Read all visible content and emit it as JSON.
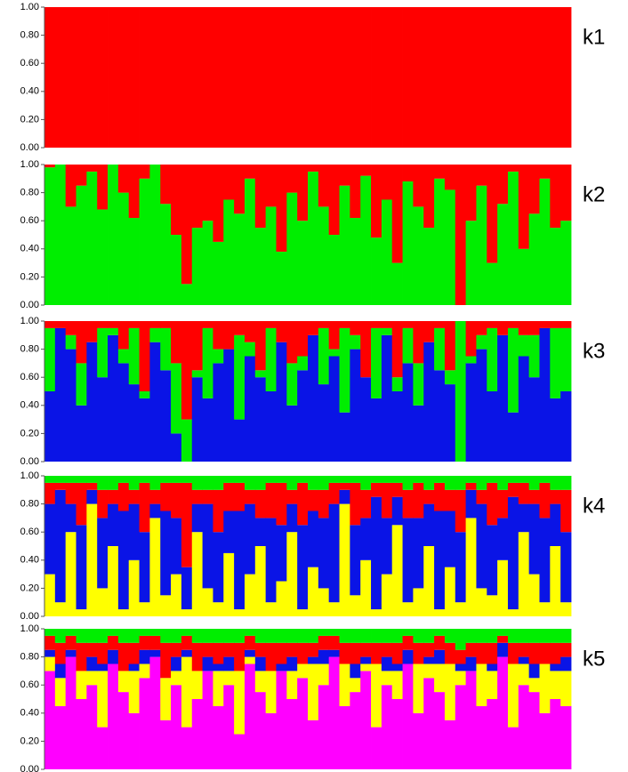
{
  "chart_data": [
    {
      "type": "bar",
      "stacked": true,
      "title": "k1",
      "ylim": [
        0,
        1
      ],
      "yticks": [
        {
          "value": 0,
          "label": "0.00"
        },
        {
          "value": 0.2,
          "label": "0.20"
        },
        {
          "value": 0.4,
          "label": "0.40"
        },
        {
          "value": 0.6,
          "label": "0.60"
        },
        {
          "value": 0.8,
          "label": "0.80"
        },
        {
          "value": 1,
          "label": "1.00"
        }
      ],
      "series": [
        {
          "color": "#ff0000",
          "values": [
            1,
            1,
            1,
            1,
            1,
            1,
            1,
            1,
            1,
            1,
            1,
            1,
            1,
            1,
            1,
            1,
            1,
            1,
            1,
            1,
            1,
            1,
            1,
            1,
            1,
            1,
            1,
            1,
            1,
            1,
            1,
            1,
            1,
            1,
            1,
            1,
            1,
            1,
            1,
            1,
            1,
            1,
            1,
            1,
            1,
            1,
            1,
            1,
            1,
            1
          ]
        }
      ]
    },
    {
      "type": "bar",
      "stacked": true,
      "title": "k2",
      "ylim": [
        0,
        1
      ],
      "yticks": [
        {
          "value": 0,
          "label": "0.00"
        },
        {
          "value": 0.2,
          "label": "0.20"
        },
        {
          "value": 0.4,
          "label": "0.40"
        },
        {
          "value": 0.6,
          "label": "0.60"
        },
        {
          "value": 0.8,
          "label": "0.80"
        },
        {
          "value": 1,
          "label": "1.00"
        }
      ],
      "series": [
        {
          "color": "#00ee00",
          "values": [
            0.98,
            1,
            0.7,
            0.85,
            0.95,
            0.68,
            1,
            0.8,
            0.62,
            0.9,
            1,
            0.72,
            0.5,
            0.15,
            0.55,
            0.6,
            0.45,
            0.75,
            0.65,
            0.9,
            0.55,
            0.7,
            0.38,
            0.8,
            0.6,
            0.95,
            0.7,
            0.5,
            0.85,
            0.62,
            0.92,
            0.48,
            0.75,
            0.3,
            0.88,
            0.7,
            0.55,
            0.9,
            0.82,
            0,
            0.6,
            0.85,
            0.3,
            0.72,
            0.95,
            0.4,
            0.65,
            0.9,
            0.55,
            0.6
          ]
        },
        {
          "color": "#ff0000",
          "values": [
            0.02,
            0,
            0.3,
            0.15,
            0.05,
            0.32,
            0,
            0.2,
            0.38,
            0.1,
            0,
            0.28,
            0.5,
            0.85,
            0.45,
            0.4,
            0.55,
            0.25,
            0.35,
            0.1,
            0.45,
            0.3,
            0.62,
            0.2,
            0.4,
            0.05,
            0.3,
            0.5,
            0.15,
            0.38,
            0.08,
            0.52,
            0.25,
            0.7,
            0.12,
            0.3,
            0.45,
            0.1,
            0.18,
            1,
            0.4,
            0.15,
            0.7,
            0.28,
            0.05,
            0.6,
            0.35,
            0.1,
            0.45,
            0.4
          ]
        }
      ]
    },
    {
      "type": "bar",
      "stacked": true,
      "title": "k3",
      "ylim": [
        0,
        1
      ],
      "yticks": [
        {
          "value": 0,
          "label": "0.00"
        },
        {
          "value": 0.2,
          "label": "0.20"
        },
        {
          "value": 0.4,
          "label": "0.40"
        },
        {
          "value": 0.6,
          "label": "0.60"
        },
        {
          "value": 0.8,
          "label": "0.80"
        },
        {
          "value": 1,
          "label": "1.00"
        }
      ],
      "series": [
        {
          "color": "#0a14e6",
          "values": [
            0.5,
            0.95,
            0.8,
            0.4,
            0.85,
            0.6,
            0.9,
            0.7,
            0.55,
            0.45,
            0.85,
            0.65,
            0.2,
            0,
            0.6,
            0.45,
            0.7,
            0.8,
            0.3,
            0.75,
            0.6,
            0.5,
            0.85,
            0.4,
            0.65,
            0.9,
            0.55,
            0.75,
            0.35,
            0.8,
            0.6,
            0.45,
            0.9,
            0.5,
            0.7,
            0.4,
            0.85,
            0.65,
            0.55,
            0,
            0.7,
            0.8,
            0.5,
            0.9,
            0.35,
            0.75,
            0.6,
            0.95,
            0.45,
            0.5
          ]
        },
        {
          "color": "#00ee00",
          "values": [
            0.45,
            0,
            0.1,
            0.3,
            0,
            0.35,
            0.05,
            0.1,
            0.4,
            0.05,
            0.1,
            0.3,
            0.5,
            0.3,
            0.05,
            0.5,
            0.1,
            0,
            0.6,
            0.1,
            0.05,
            0.45,
            0,
            0.3,
            0.1,
            0,
            0.4,
            0.05,
            0.6,
            0.1,
            0,
            0.5,
            0.05,
            0.1,
            0.25,
            0.3,
            0,
            0.3,
            0.1,
            1,
            0.05,
            0.1,
            0.45,
            0,
            0.6,
            0.15,
            0.3,
            0,
            0.5,
            0.45
          ]
        },
        {
          "color": "#ff0000",
          "values": [
            0.05,
            0.05,
            0.1,
            0.3,
            0.15,
            0.05,
            0.05,
            0.2,
            0.05,
            0.5,
            0.05,
            0.05,
            0.3,
            0.7,
            0.35,
            0.05,
            0.2,
            0.2,
            0.1,
            0.15,
            0.35,
            0.05,
            0.15,
            0.3,
            0.25,
            0.1,
            0.05,
            0.2,
            0.05,
            0.1,
            0.4,
            0.05,
            0.05,
            0.4,
            0.05,
            0.3,
            0.15,
            0.05,
            0.35,
            0,
            0.25,
            0.1,
            0.05,
            0.1,
            0.05,
            0.1,
            0.1,
            0.05,
            0.05,
            0.05
          ]
        }
      ]
    },
    {
      "type": "bar",
      "stacked": true,
      "title": "k4",
      "ylim": [
        0,
        1
      ],
      "yticks": [
        {
          "value": 0,
          "label": "0.00"
        },
        {
          "value": 0.2,
          "label": "0.20"
        },
        {
          "value": 0.4,
          "label": "0.40"
        },
        {
          "value": 0.6,
          "label": "0.60"
        },
        {
          "value": 0.8,
          "label": "0.80"
        },
        {
          "value": 1,
          "label": "1.00"
        }
      ],
      "series": [
        {
          "color": "#ffff00",
          "values": [
            0.3,
            0.1,
            0.6,
            0.05,
            0.8,
            0.2,
            0.5,
            0.05,
            0.4,
            0.1,
            0.7,
            0.15,
            0.3,
            0.05,
            0.6,
            0.2,
            0.1,
            0.45,
            0.05,
            0.3,
            0.5,
            0.1,
            0.25,
            0.6,
            0.05,
            0.35,
            0.2,
            0.1,
            0.8,
            0.15,
            0.4,
            0.05,
            0.3,
            0.65,
            0.1,
            0.2,
            0.5,
            0.05,
            0.35,
            0.1,
            0.7,
            0.2,
            0.15,
            0.4,
            0.05,
            0.6,
            0.3,
            0.1,
            0.5,
            0.1
          ]
        },
        {
          "color": "#0a14e6",
          "values": [
            0.5,
            0.8,
            0.2,
            0.6,
            0.1,
            0.5,
            0.3,
            0.7,
            0.4,
            0.5,
            0.1,
            0.6,
            0.4,
            0.3,
            0.2,
            0.6,
            0.5,
            0.3,
            0.7,
            0.5,
            0.2,
            0.6,
            0.4,
            0.2,
            0.6,
            0.4,
            0.5,
            0.7,
            0.1,
            0.5,
            0.3,
            0.8,
            0.4,
            0.2,
            0.6,
            0.5,
            0.3,
            0.7,
            0.4,
            0.5,
            0.2,
            0.6,
            0.5,
            0.3,
            0.8,
            0.2,
            0.5,
            0.6,
            0.3,
            0.5
          ]
        },
        {
          "color": "#ff0000",
          "values": [
            0.15,
            0.05,
            0.15,
            0.3,
            0.05,
            0.2,
            0.1,
            0.2,
            0.1,
            0.35,
            0.1,
            0.2,
            0.25,
            0.6,
            0.1,
            0.1,
            0.3,
            0.2,
            0.2,
            0.1,
            0.2,
            0.25,
            0.3,
            0.1,
            0.3,
            0.15,
            0.2,
            0.15,
            0.05,
            0.3,
            0.2,
            0.1,
            0.25,
            0.1,
            0.2,
            0.25,
            0.1,
            0.2,
            0.15,
            0.3,
            0.05,
            0.1,
            0.3,
            0.2,
            0.1,
            0.15,
            0.1,
            0.25,
            0.1,
            0.3
          ]
        },
        {
          "color": "#00ee00",
          "values": [
            0.05,
            0.05,
            0.05,
            0.05,
            0.05,
            0.1,
            0.1,
            0.05,
            0.1,
            0.05,
            0.1,
            0.05,
            0.05,
            0.05,
            0.1,
            0.1,
            0.1,
            0.05,
            0.05,
            0.1,
            0.1,
            0.05,
            0.05,
            0.1,
            0.05,
            0.1,
            0.1,
            0.05,
            0.05,
            0.05,
            0.1,
            0.05,
            0.05,
            0.05,
            0.1,
            0.05,
            0.1,
            0.05,
            0.1,
            0.1,
            0.05,
            0.1,
            0.05,
            0.1,
            0.05,
            0.05,
            0.1,
            0.05,
            0.1,
            0.1
          ]
        }
      ]
    },
    {
      "type": "bar",
      "stacked": true,
      "title": "k5",
      "ylim": [
        0,
        1
      ],
      "yticks": [
        {
          "value": 0,
          "label": "0.00"
        },
        {
          "value": 0.2,
          "label": "0.20"
        },
        {
          "value": 0.4,
          "label": "0.40"
        },
        {
          "value": 0.6,
          "label": "0.60"
        },
        {
          "value": 0.8,
          "label": "0.80"
        },
        {
          "value": 1,
          "label": "1.00"
        }
      ],
      "series": [
        {
          "color": "#ff00ff",
          "values": [
            0.7,
            0.45,
            0.8,
            0.5,
            0.6,
            0.3,
            0.75,
            0.55,
            0.4,
            0.65,
            0.8,
            0.35,
            0.6,
            0.3,
            0.5,
            0.7,
            0.45,
            0.6,
            0.25,
            0.75,
            0.55,
            0.4,
            0.7,
            0.5,
            0.65,
            0.35,
            0.6,
            0.8,
            0.45,
            0.55,
            0.7,
            0.3,
            0.6,
            0.5,
            0.75,
            0.4,
            0.65,
            0.55,
            0.35,
            0.6,
            0.7,
            0.45,
            0.5,
            0.8,
            0.3,
            0.6,
            0.55,
            0.4,
            0.5,
            0.45
          ]
        },
        {
          "color": "#ffff00",
          "values": [
            0.1,
            0.2,
            0,
            0.2,
            0.1,
            0.4,
            0,
            0.15,
            0.3,
            0.1,
            0,
            0.3,
            0.1,
            0.5,
            0.2,
            0,
            0.25,
            0.1,
            0.45,
            0.05,
            0.15,
            0.3,
            0,
            0.2,
            0.1,
            0.4,
            0.15,
            0,
            0.3,
            0.1,
            0.05,
            0.45,
            0.1,
            0.2,
            0,
            0.35,
            0.1,
            0.2,
            0.4,
            0.1,
            0,
            0.3,
            0.2,
            0,
            0.45,
            0.15,
            0.1,
            0.35,
            0.2,
            0.25
          ]
        },
        {
          "color": "#0a14e6",
          "values": [
            0.05,
            0.1,
            0.05,
            0,
            0.1,
            0.05,
            0.1,
            0,
            0.05,
            0.1,
            0.05,
            0,
            0.1,
            0.05,
            0,
            0.1,
            0.05,
            0.1,
            0,
            0.05,
            0.1,
            0,
            0.05,
            0.1,
            0,
            0.05,
            0.1,
            0.05,
            0,
            0.1,
            0.05,
            0,
            0.1,
            0.05,
            0.1,
            0,
            0.05,
            0.1,
            0,
            0.05,
            0.1,
            0,
            0.05,
            0.1,
            0,
            0.05,
            0.1,
            0,
            0.05,
            0.1
          ]
        },
        {
          "color": "#ff0000",
          "values": [
            0.1,
            0.15,
            0.1,
            0.2,
            0.1,
            0.15,
            0.1,
            0.2,
            0.15,
            0.1,
            0.1,
            0.25,
            0.1,
            0.1,
            0.2,
            0.1,
            0.15,
            0.1,
            0.2,
            0.1,
            0.1,
            0.2,
            0.15,
            0.1,
            0.15,
            0.1,
            0.1,
            0.1,
            0.15,
            0.15,
            0.1,
            0.15,
            0.1,
            0.15,
            0.1,
            0.15,
            0.1,
            0.1,
            0.15,
            0.1,
            0.1,
            0.15,
            0.15,
            0.05,
            0.15,
            0.1,
            0.15,
            0.15,
            0.15,
            0.1
          ]
        },
        {
          "color": "#00ee00",
          "values": [
            0.05,
            0.1,
            0.05,
            0.1,
            0.1,
            0.1,
            0.05,
            0.1,
            0.1,
            0.05,
            0.05,
            0.1,
            0.1,
            0.05,
            0.1,
            0.1,
            0.1,
            0.1,
            0.1,
            0.05,
            0.1,
            0.1,
            0.1,
            0.1,
            0.1,
            0.1,
            0.05,
            0.05,
            0.1,
            0.1,
            0.1,
            0.1,
            0.1,
            0.1,
            0.05,
            0.1,
            0.1,
            0.05,
            0.1,
            0.15,
            0.1,
            0.1,
            0.1,
            0.05,
            0.1,
            0.1,
            0.1,
            0.1,
            0.1,
            0.1
          ]
        }
      ]
    }
  ]
}
